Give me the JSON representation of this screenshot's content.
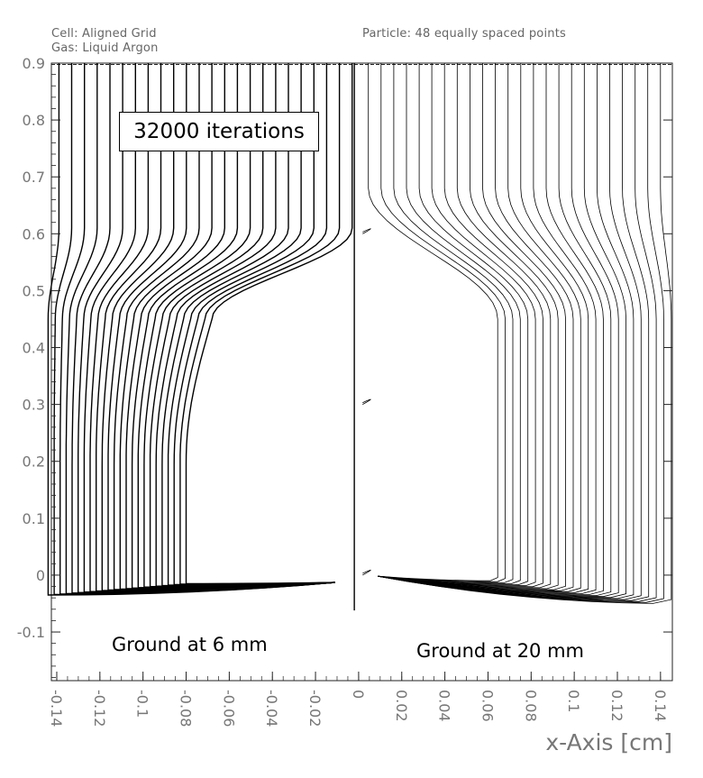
{
  "header": {
    "cell": "Cell: Aligned Grid",
    "gas": "Gas: Liquid Argon",
    "particle": "Particle: 48 equally spaced points"
  },
  "annotations": {
    "iterations": "32000 iterations",
    "left_ground": "Ground at 6 mm",
    "right_ground": "Ground at 20 mm"
  },
  "chart_data": {
    "type": "line",
    "title": "",
    "xlabel": "x-Axis [cm]",
    "ylabel": "",
    "xlim": [
      -0.1425,
      0.1455
    ],
    "ylim": [
      -0.1855,
      0.9
    ],
    "x_ticks": [
      -0.14,
      -0.12,
      -0.1,
      -0.08,
      -0.06,
      -0.04,
      -0.02,
      0,
      0.02,
      0.04,
      0.06,
      0.08,
      0.1,
      0.12,
      0.14
    ],
    "x_tick_labels": [
      "-0.14",
      "-0.12",
      "-0.1",
      "-0.08",
      "-0.06",
      "-0.04",
      "-0.02",
      "0",
      "0.02",
      "0.04",
      "0.06",
      "0.08",
      "0.1",
      "0.12",
      "0.14"
    ],
    "y_ticks": [
      0.9,
      0.8,
      0.7,
      0.6,
      0.5,
      0.4,
      0.3,
      0.2,
      0.1,
      0,
      -0.1
    ],
    "y_tick_labels": [
      "0.9",
      "0.8",
      "0.7",
      "0.6",
      "0.5",
      "0.4",
      "0.3",
      "0.2",
      "0.1",
      "0",
      "-0.1"
    ],
    "grid": false,
    "panels": [
      {
        "side": "left",
        "line_count": 24,
        "start_x": [
          -0.139,
          -0.003
        ],
        "upper_bulge_y": 0.61,
        "waist_y": 0.2,
        "waist_x": -0.075,
        "converge_point": [
          -0.011,
          -0.013
        ],
        "bottom_y": -0.035
      },
      {
        "side": "right",
        "line_count": 24,
        "start_x": [
          0.0045,
          0.14
        ],
        "upper_bulge_y": 0.6,
        "waist_y": 0.28,
        "waist_x": 0.073,
        "converge_point": [
          0.009,
          -0.002
        ],
        "bottom_y": -0.05
      }
    ],
    "divider_x": -0.002,
    "small_loops": [
      {
        "x": 0.0035,
        "y": 0.6
      },
      {
        "x": 0.0035,
        "y": 0.3
      },
      {
        "x": 0.0035,
        "y": 0.0
      }
    ]
  }
}
